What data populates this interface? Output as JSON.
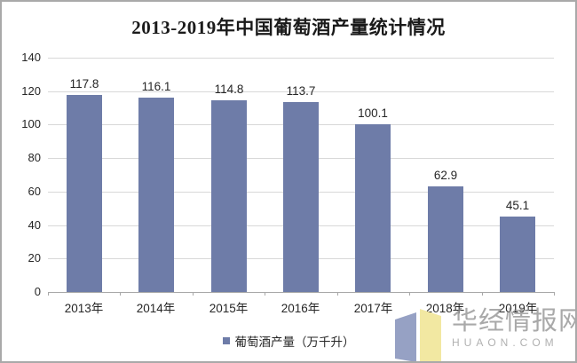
{
  "page": {
    "title": "2013-2019年中国葡萄酒产量统计情况"
  },
  "chart_data": {
    "type": "bar",
    "title": "2013-2019年中国葡萄酒产量统计情况",
    "categories": [
      "2013年",
      "2014年",
      "2015年",
      "2016年",
      "2017年",
      "2018年",
      "2019年"
    ],
    "series": [
      {
        "name": "葡萄酒产量（万千升）",
        "values": [
          117.8,
          116.1,
          114.8,
          113.7,
          100.1,
          62.9,
          45.1
        ]
      }
    ],
    "ylabel": "",
    "xlabel": "",
    "ylim": [
      0,
      140
    ],
    "yticks": [
      0,
      20,
      40,
      60,
      80,
      100,
      120,
      140
    ],
    "grid": true,
    "legend_position": "bottom",
    "bar_color": "#6e7ca8"
  },
  "legend": {
    "label": "葡萄酒产量（万千升）"
  },
  "watermark": {
    "site_name": "华经情报网",
    "site_domain": "HUAON.COM",
    "logo_left_color": "#96a1c4",
    "logo_right_color": "#f2e8a2"
  }
}
